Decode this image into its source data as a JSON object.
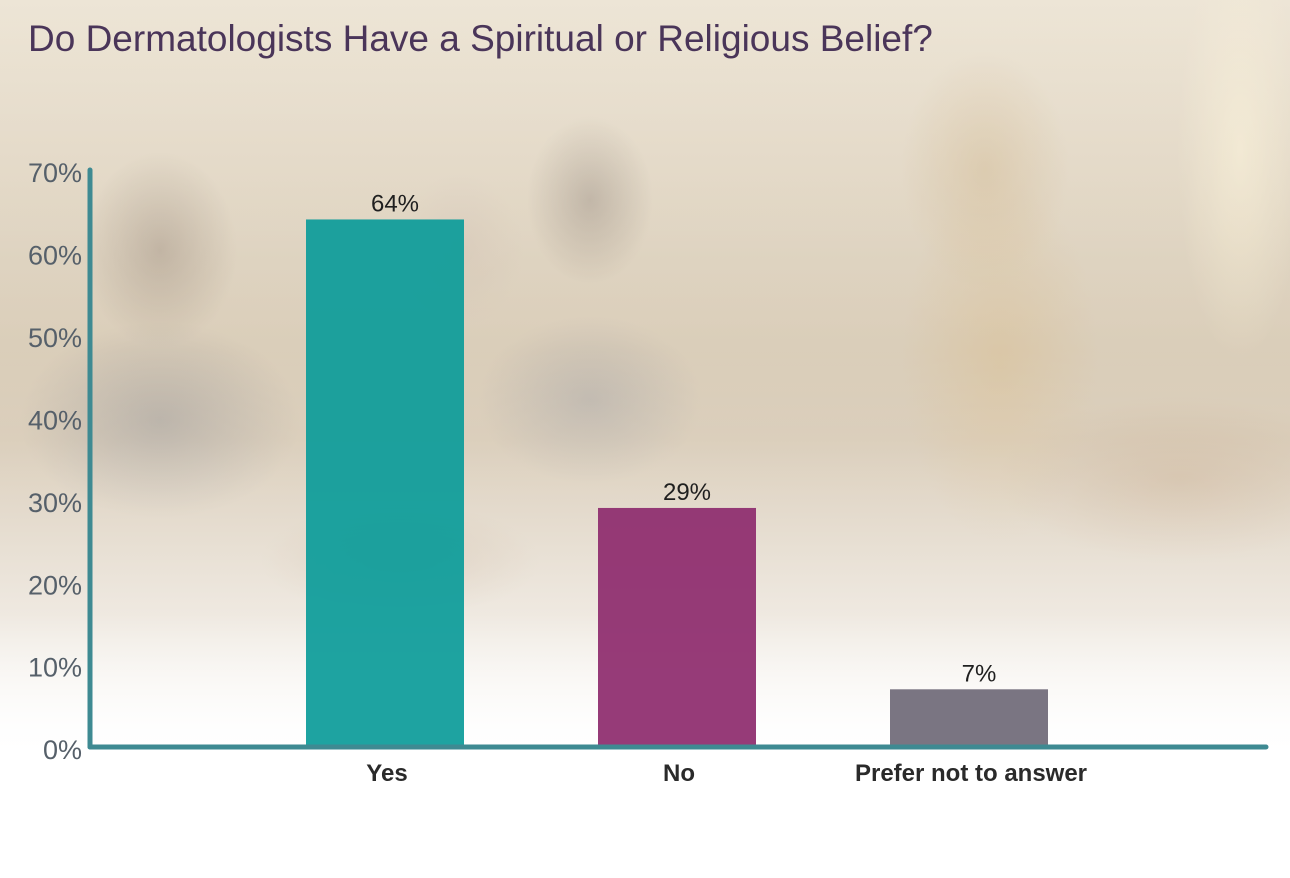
{
  "chart_data": {
    "type": "bar",
    "title": "Do Dermatologists Have a Spiritual or Religious Belief?",
    "categories": [
      "Yes",
      "No",
      "Prefer not to answer"
    ],
    "values": [
      64,
      29,
      7
    ],
    "value_labels": [
      "64%",
      "29%",
      "7%"
    ],
    "ylim": [
      0,
      70
    ],
    "yticks": [
      0,
      10,
      20,
      30,
      40,
      50,
      60,
      70
    ],
    "ytick_labels": [
      "0%",
      "10%",
      "20%",
      "30%",
      "40%",
      "50%",
      "60%",
      "70%"
    ],
    "xlabel": "",
    "ylabel": "",
    "grid": false,
    "colors": {
      "bars": [
        "#0d9c9a",
        "#8e2c6e",
        "#706a78"
      ],
      "axis": "#3e8a92",
      "title": "#4a3559"
    }
  }
}
